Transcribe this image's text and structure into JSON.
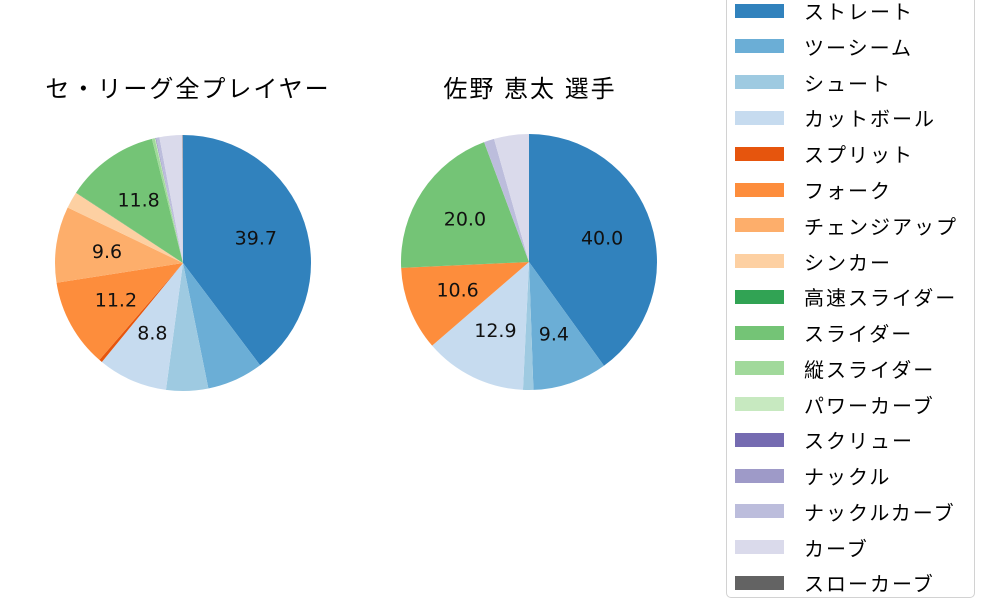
{
  "page": {
    "background": "#ffffff"
  },
  "pitch_types": [
    {
      "key": "straight",
      "label": "ストレート",
      "color": "#3182bd"
    },
    {
      "key": "two-seam",
      "label": "ツーシーム",
      "color": "#6baed6"
    },
    {
      "key": "shoot",
      "label": "シュート",
      "color": "#9ecae1"
    },
    {
      "key": "cutball",
      "label": "カットボール",
      "color": "#c6dbef"
    },
    {
      "key": "split",
      "label": "スプリット",
      "color": "#e6550d"
    },
    {
      "key": "fork",
      "label": "フォーク",
      "color": "#fd8d3c"
    },
    {
      "key": "changeup",
      "label": "チェンジアップ",
      "color": "#fdae6b"
    },
    {
      "key": "sinker",
      "label": "シンカー",
      "color": "#fdd0a2"
    },
    {
      "key": "fast-slider",
      "label": "高速スライダー",
      "color": "#31a354"
    },
    {
      "key": "slider",
      "label": "スライダー",
      "color": "#74c476"
    },
    {
      "key": "vertical-slider",
      "label": "縦スライダー",
      "color": "#a1d99b"
    },
    {
      "key": "power-curve",
      "label": "パワーカーブ",
      "color": "#c7e9c0"
    },
    {
      "key": "screw",
      "label": "スクリュー",
      "color": "#756bb1"
    },
    {
      "key": "knuckle",
      "label": "ナックル",
      "color": "#9e9ac8"
    },
    {
      "key": "knuckle-curve",
      "label": "ナックルカーブ",
      "color": "#bcbddc"
    },
    {
      "key": "curve",
      "label": "カーブ",
      "color": "#dadaeb"
    },
    {
      "key": "slow-curve",
      "label": "スローカーブ",
      "color": "#636363"
    }
  ],
  "chart_data": [
    {
      "type": "pie",
      "title": "セ・リーグ全プレイヤー",
      "categories": [
        "ストレート",
        "ツーシーム",
        "シュート",
        "カットボール",
        "スプリット",
        "フォーク",
        "チェンジアップ",
        "シンカー",
        "高速スライダー",
        "スライダー",
        "縦スライダー",
        "パワーカーブ",
        "スクリュー",
        "ナックル",
        "ナックルカーブ",
        "カーブ",
        "スローカーブ"
      ],
      "values": [
        39.7,
        7.1,
        5.3,
        8.8,
        0.4,
        11.2,
        9.6,
        2.1,
        0.05,
        11.8,
        0.35,
        0.1,
        0.05,
        0.05,
        0.4,
        2.9,
        0.05
      ],
      "shown_percent_labels": [
        "39.7",
        "8.8",
        "11.2",
        "9.6",
        "11.8"
      ],
      "label_threshold_pct": 8,
      "start_angle": "top",
      "direction": "clockwise",
      "label_distance_ratio": 0.6
    },
    {
      "type": "pie",
      "title": "佐野 恵太 選手",
      "categories": [
        "ストレート",
        "ツーシーム",
        "シュート",
        "カットボール",
        "スプリット",
        "フォーク",
        "チェンジアップ",
        "シンカー",
        "高速スライダー",
        "スライダー",
        "縦スライダー",
        "パワーカーブ",
        "スクリュー",
        "ナックル",
        "ナックルカーブ",
        "カーブ",
        "スローカーブ"
      ],
      "values": [
        40.0,
        9.4,
        1.3,
        12.9,
        0,
        10.6,
        0,
        0,
        0,
        20.0,
        0,
        0,
        0,
        0,
        1.3,
        4.4,
        0
      ],
      "shown_percent_labels": [
        "40.0",
        "9.4",
        "12.9",
        "10.6",
        "20.0"
      ],
      "label_threshold_pct": 8,
      "start_angle": "top",
      "direction": "clockwise",
      "label_distance_ratio": 0.6
    }
  ],
  "legend": {
    "border_color": "#d2d2d2",
    "background": "#ffffff"
  }
}
